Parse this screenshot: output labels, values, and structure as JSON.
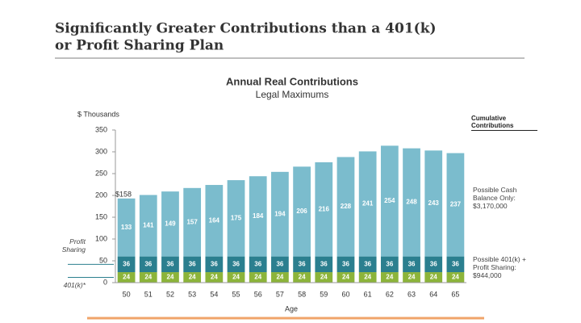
{
  "page": {
    "title_lines": [
      "Significantly Greater Contributions than a 401(k)",
      "or Profit Sharing Plan"
    ]
  },
  "chart_data": {
    "type": "stacked-bar",
    "title": "Annual Real Contributions",
    "subtitle": "Legal Maximums",
    "y_label": "$ Thousands",
    "x_label": "Age",
    "categories": [
      "50",
      "51",
      "52",
      "53",
      "54",
      "55",
      "56",
      "57",
      "58",
      "59",
      "60",
      "61",
      "62",
      "63",
      "64",
      "65"
    ],
    "series": [
      {
        "name": "401(k)*",
        "color": "#8cb43a",
        "values": [
          24,
          24,
          24,
          24,
          24,
          24,
          24,
          24,
          24,
          24,
          24,
          24,
          24,
          24,
          24,
          24
        ]
      },
      {
        "name": "Profit Sharing",
        "color": "#2b7f8f",
        "values": [
          36,
          36,
          36,
          36,
          36,
          36,
          36,
          36,
          36,
          36,
          36,
          36,
          36,
          36,
          36,
          36
        ]
      },
      {
        "color": "#7bbccd",
        "values": [
          133,
          141,
          149,
          157,
          164,
          175,
          184,
          194,
          206,
          216,
          228,
          241,
          254,
          248,
          243,
          237
        ]
      }
    ],
    "ylim": [
      0,
      350
    ],
    "yticks": [
      0,
      50,
      100,
      150,
      200,
      250,
      300,
      350
    ],
    "annotations": {
      "first_bar": "$158",
      "right_heading": "Cumulative Contributions",
      "cash_note": "Possible Cash Balance Only: $3,170,000",
      "plan_note": "Possible 401(k) + Profit Sharing: $944,000"
    }
  }
}
